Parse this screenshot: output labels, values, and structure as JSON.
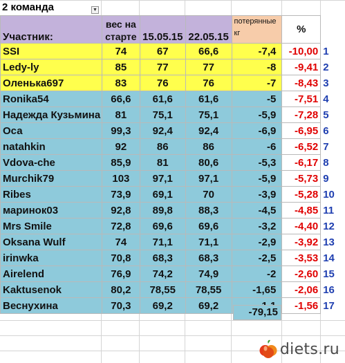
{
  "sheet_title": "2 команда",
  "headers": {
    "participant": "Участник:",
    "start_weight": "вес на старте",
    "date1": "15.05.15",
    "date2": "22.05.15",
    "lost": "потерянные кг",
    "percent": "%"
  },
  "rows": [
    {
      "name": "SSI",
      "start": "74",
      "w1": "67",
      "w2": "66,6",
      "lost": "-7,4",
      "pct": "-10,00",
      "rank": "1"
    },
    {
      "name": "Ledy-ly",
      "start": "85",
      "w1": "77",
      "w2": "77",
      "lost": "-8",
      "pct": "-9,41",
      "rank": "2"
    },
    {
      "name": "Оленька697",
      "start": "83",
      "w1": "76",
      "w2": "76",
      "lost": "-7",
      "pct": "-8,43",
      "rank": "3"
    },
    {
      "name": "Ronika54",
      "start": "66,6",
      "w1": "61,6",
      "w2": "61,6",
      "lost": "-5",
      "pct": "-7,51",
      "rank": "4"
    },
    {
      "name": "Надежда Кузьмина",
      "start": "81",
      "w1": "75,1",
      "w2": "75,1",
      "lost": "-5,9",
      "pct": "-7,28",
      "rank": "5"
    },
    {
      "name": "Оса",
      "start": "99,3",
      "w1": "92,4",
      "w2": "92,4",
      "lost": "-6,9",
      "pct": "-6,95",
      "rank": "6"
    },
    {
      "name": "natahkin",
      "start": "92",
      "w1": "86",
      "w2": "86",
      "lost": "-6",
      "pct": "-6,52",
      "rank": "7"
    },
    {
      "name": "Vdova-che",
      "start": "85,9",
      "w1": "81",
      "w2": "80,6",
      "lost": "-5,3",
      "pct": "-6,17",
      "rank": "8"
    },
    {
      "name": "Murchik79",
      "start": "103",
      "w1": "97,1",
      "w2": "97,1",
      "lost": "-5,9",
      "pct": "-5,73",
      "rank": "9"
    },
    {
      "name": "Ribes",
      "start": "73,9",
      "w1": "69,1",
      "w2": "70",
      "lost": "-3,9",
      "pct": "-5,28",
      "rank": "10"
    },
    {
      "name": "маринок03",
      "start": "92,8",
      "w1": "89,8",
      "w2": "88,3",
      "lost": "-4,5",
      "pct": "-4,85",
      "rank": "11"
    },
    {
      "name": "Mrs Smile",
      "start": "72,8",
      "w1": "69,6",
      "w2": "69,6",
      "lost": "-3,2",
      "pct": "-4,40",
      "rank": "12"
    },
    {
      "name": "Oksana Wulf",
      "start": "74",
      "w1": "71,1",
      "w2": "71,1",
      "lost": "-2,9",
      "pct": "-3,92",
      "rank": "13"
    },
    {
      "name": "irinwka",
      "start": "70,8",
      "w1": "68,3",
      "w2": "68,3",
      "lost": "-2,5",
      "pct": "-3,53",
      "rank": "14"
    },
    {
      "name": "Airelend",
      "start": "76,9",
      "w1": "74,2",
      "w2": "74,9",
      "lost": "-2",
      "pct": "-2,60",
      "rank": "15"
    },
    {
      "name": "Kaktusenok",
      "start": "80,2",
      "w1": "78,55",
      "w2": "78,55",
      "lost": "-1,65",
      "pct": "-2,06",
      "rank": "16"
    },
    {
      "name": "Веснухина",
      "start": "70,3",
      "w1": "69,2",
      "w2": "69,2",
      "lost": "-1,1",
      "pct": "-1,56",
      "rank": "17"
    }
  ],
  "total_lost": "-79,15",
  "logo_text": "diets.ru",
  "colors": {
    "header": "#c3b2db",
    "header_lost": "#f7ccaa",
    "top3_highlight": "#ffff4d",
    "rest_highlight": "#8ecadb",
    "percent_text": "#e00000",
    "rank_text": "#1f3fb0"
  },
  "icons": [
    "filter-dropdown-icon",
    "apple-logo-icon"
  ]
}
